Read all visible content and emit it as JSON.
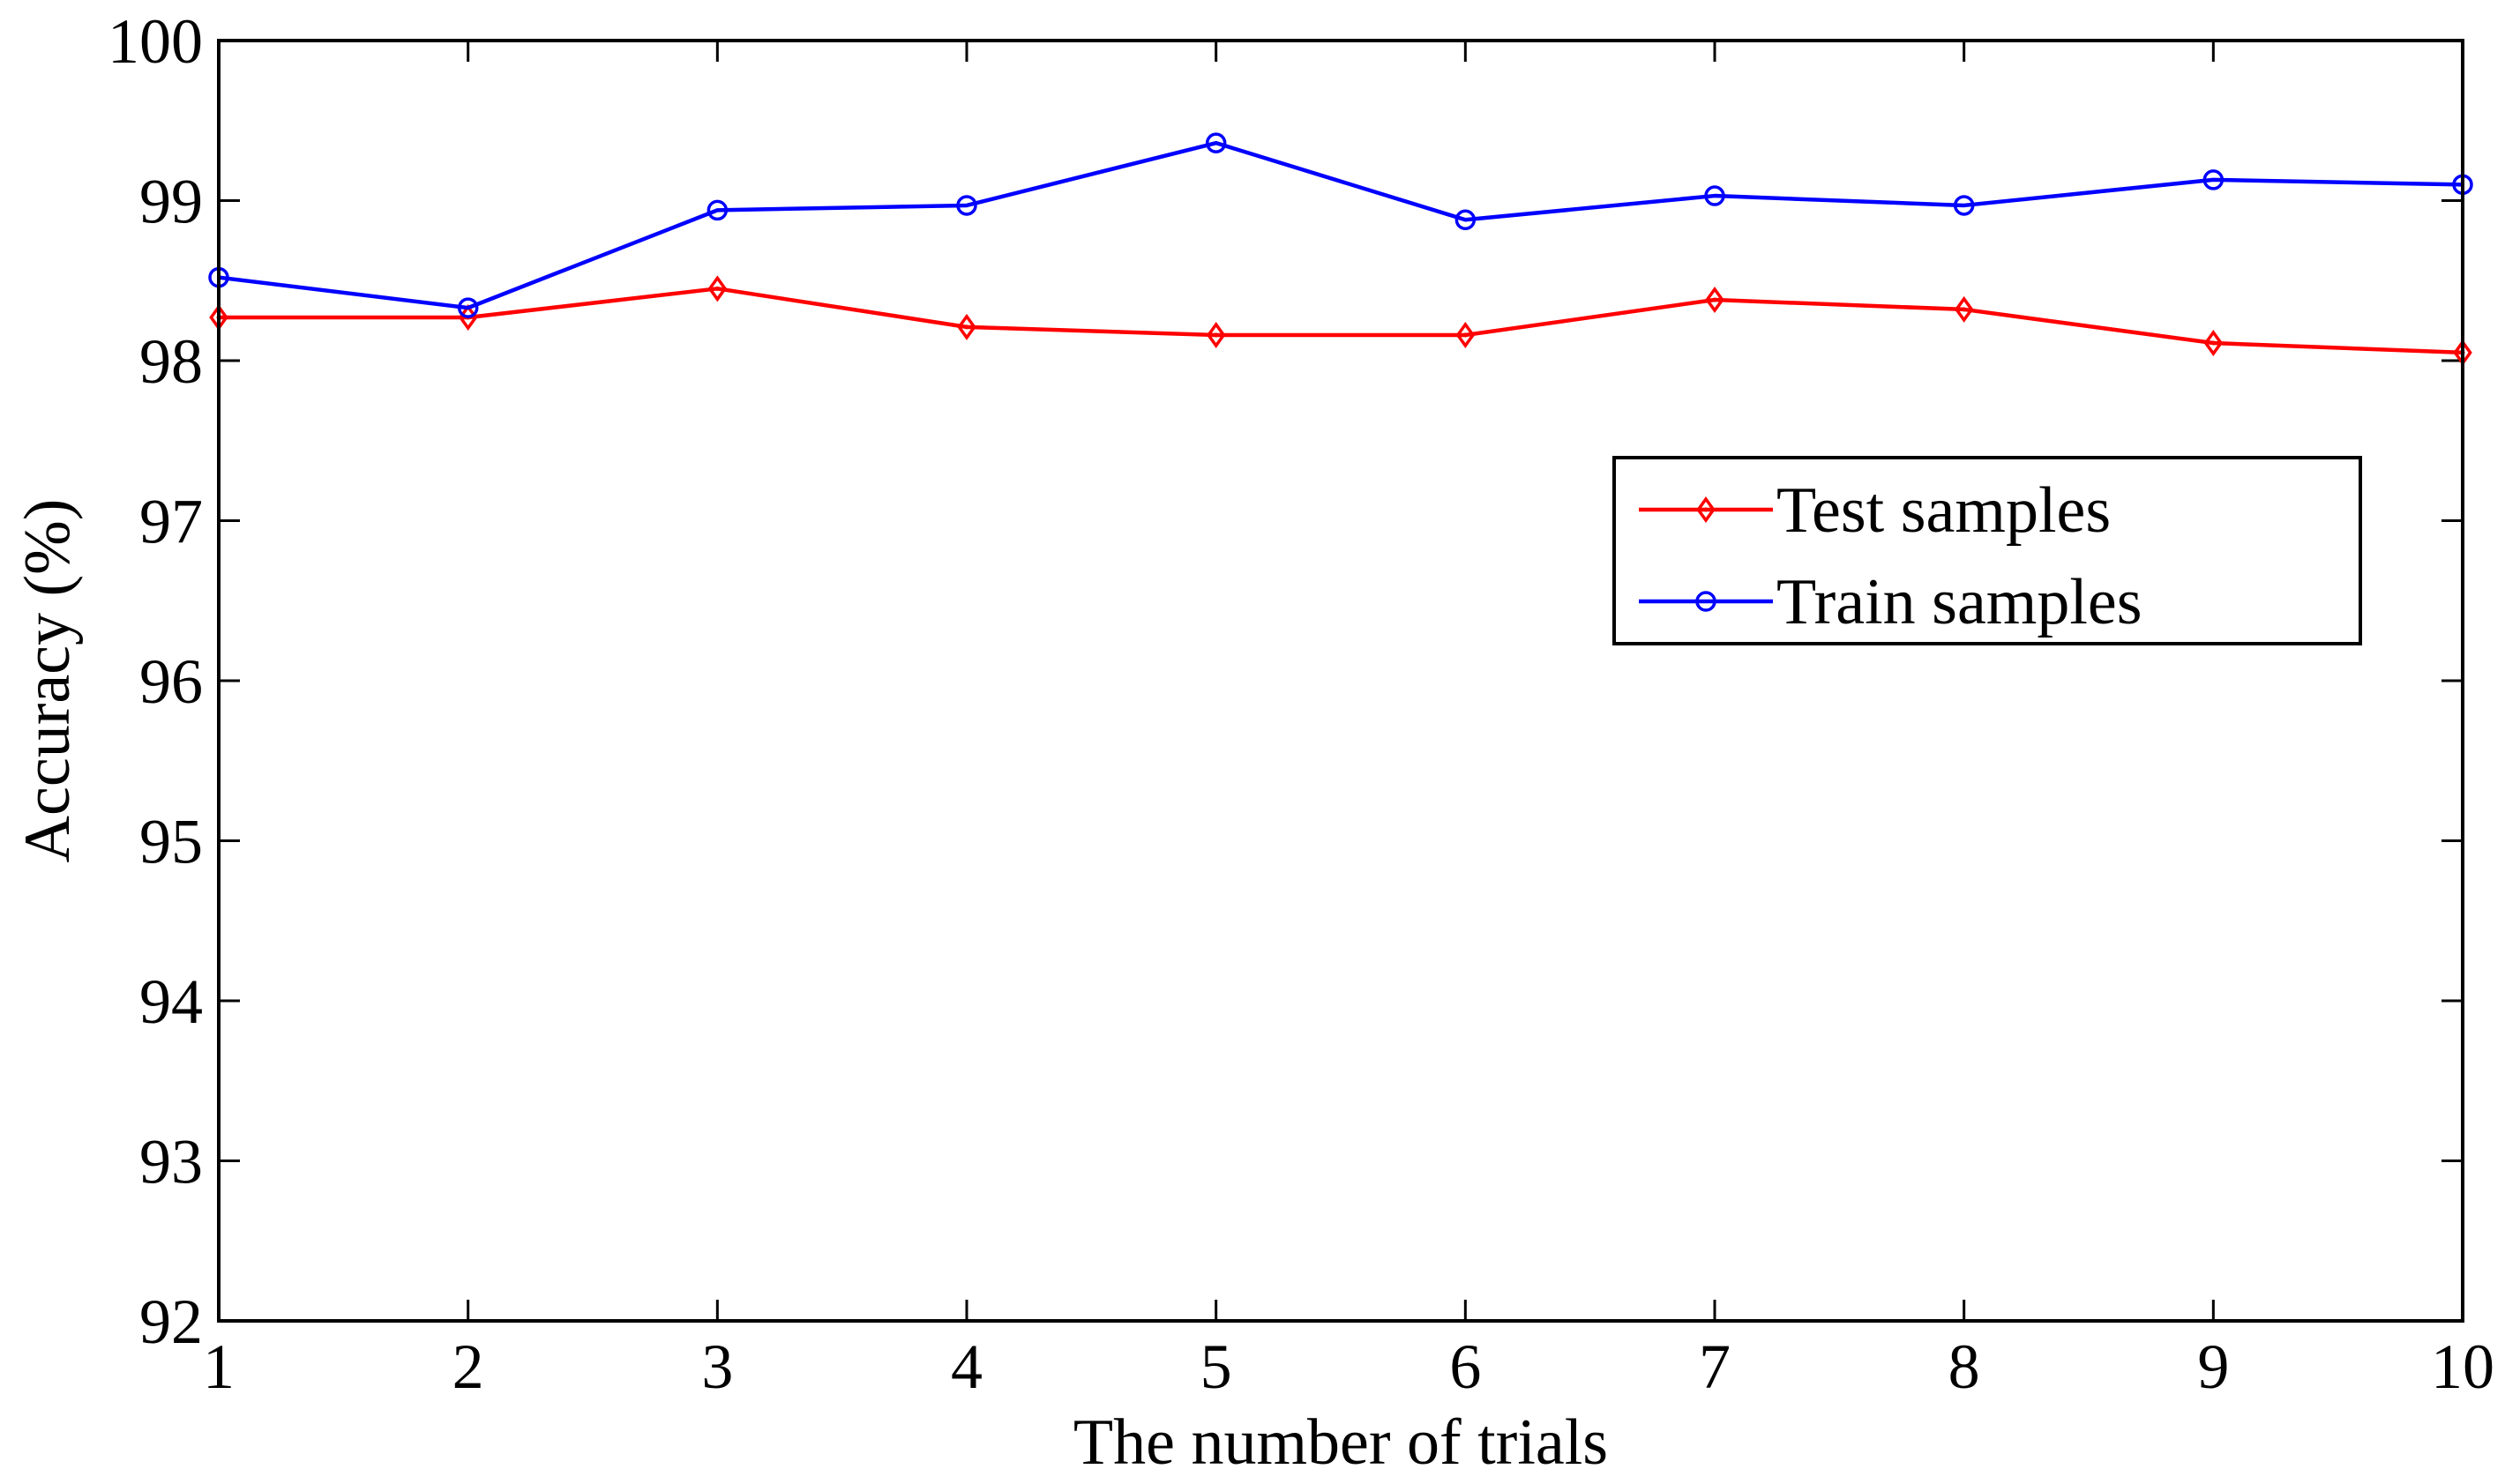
{
  "chart_data": {
    "type": "line",
    "title": "",
    "xlabel": "The number of trials",
    "ylabel": "Accuracy (%)",
    "x": [
      1,
      2,
      3,
      4,
      5,
      6,
      7,
      8,
      9,
      10
    ],
    "xlim": [
      1,
      10
    ],
    "ylim": [
      92,
      100
    ],
    "xticks": [
      "1",
      "2",
      "3",
      "4",
      "5",
      "6",
      "7",
      "8",
      "9",
      "10"
    ],
    "yticks": [
      "92",
      "93",
      "94",
      "95",
      "96",
      "97",
      "98",
      "99",
      "100"
    ],
    "grid": false,
    "legend_position": "right",
    "series": [
      {
        "name": "Test samples",
        "color": "#ff0000",
        "marker": "diamond",
        "values": [
          98.27,
          98.27,
          98.45,
          98.21,
          98.16,
          98.16,
          98.38,
          98.32,
          98.11,
          98.05
        ]
      },
      {
        "name": "Train samples",
        "color": "#0000ff",
        "marker": "circle",
        "values": [
          98.52,
          98.33,
          98.94,
          98.97,
          99.36,
          98.88,
          99.03,
          98.97,
          99.13,
          99.1
        ]
      }
    ]
  }
}
